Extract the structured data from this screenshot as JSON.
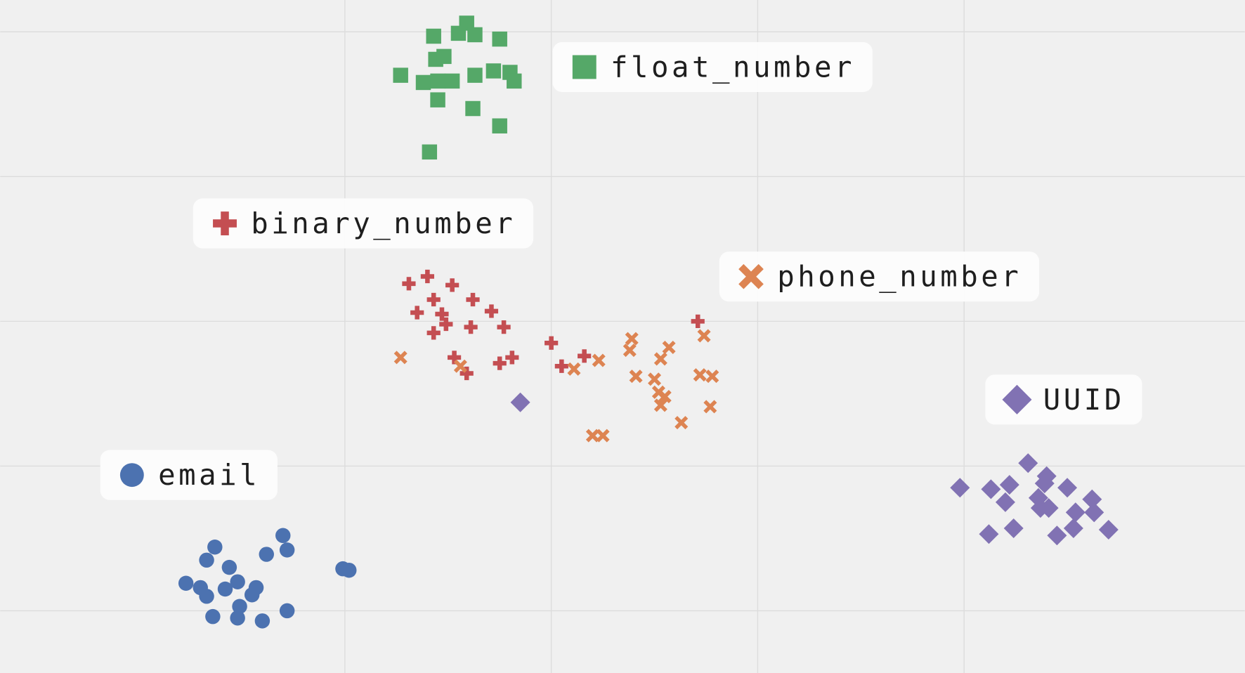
{
  "chart_data": {
    "type": "scatter",
    "grid": true,
    "xlim": [
      -1.67,
      4.36
    ],
    "ylim": [
      -0.43,
      4.22
    ],
    "xticks": [
      0,
      1,
      2,
      3
    ],
    "yticks": [
      0,
      1,
      2,
      3,
      4
    ],
    "series": [
      {
        "name": "float_number",
        "color": "#55a868",
        "marker": "square",
        "x": [
          0.43,
          0.55,
          0.59,
          0.63,
          0.75,
          0.44,
          0.48,
          0.27,
          0.38,
          0.45,
          0.52,
          0.63,
          0.72,
          0.8,
          0.82,
          0.45,
          0.62,
          0.75,
          0.41
        ],
        "values": [
          3.97,
          3.99,
          4.06,
          3.98,
          3.95,
          3.81,
          3.83,
          3.7,
          3.65,
          3.66,
          3.66,
          3.7,
          3.73,
          3.72,
          3.66,
          3.53,
          3.47,
          3.35,
          3.17
        ]
      },
      {
        "name": "binary_number",
        "color": "#c44e52",
        "marker": "plus",
        "x": [
          0.31,
          0.4,
          0.52,
          0.43,
          0.62,
          0.35,
          0.47,
          0.71,
          0.49,
          0.61,
          0.77,
          0.43,
          0.53,
          0.81,
          0.75,
          0.59,
          1.0,
          1.05,
          1.16,
          1.71
        ],
        "values": [
          2.26,
          2.31,
          2.25,
          2.15,
          2.15,
          2.06,
          2.05,
          2.07,
          1.98,
          1.96,
          1.96,
          1.92,
          1.75,
          1.75,
          1.71,
          1.64,
          1.85,
          1.69,
          1.76,
          2.0
        ]
      },
      {
        "name": "phone_number",
        "color": "#dd8452",
        "marker": "x",
        "x": [
          0.27,
          0.56,
          1.11,
          1.23,
          1.39,
          1.38,
          1.57,
          1.53,
          1.74,
          1.41,
          1.5,
          1.72,
          1.78,
          1.52,
          1.55,
          1.53,
          1.77,
          1.63,
          1.2,
          1.25
        ],
        "values": [
          1.75,
          1.69,
          1.67,
          1.73,
          1.88,
          1.8,
          1.82,
          1.74,
          1.9,
          1.62,
          1.6,
          1.63,
          1.62,
          1.51,
          1.48,
          1.42,
          1.41,
          1.3,
          1.21,
          1.21
        ]
      },
      {
        "name": "UUID",
        "color": "#8172b3",
        "marker": "diamond",
        "x": [
          0.85,
          3.31,
          3.4,
          3.39,
          2.98,
          3.13,
          3.22,
          3.5,
          3.36,
          3.62,
          3.2,
          3.37,
          3.41,
          3.54,
          3.63,
          3.24,
          3.53,
          3.7,
          3.12,
          3.45
        ],
        "values": [
          1.44,
          1.02,
          0.93,
          0.88,
          0.85,
          0.84,
          0.87,
          0.85,
          0.78,
          0.77,
          0.75,
          0.71,
          0.71,
          0.68,
          0.68,
          0.57,
          0.57,
          0.56,
          0.53,
          0.52
        ]
      },
      {
        "name": "email",
        "color": "#4c72b0",
        "marker": "circle",
        "x": [
          -0.3,
          -0.63,
          -0.38,
          -0.28,
          -0.67,
          -0.56,
          -0.01,
          0.02,
          -0.77,
          -0.52,
          -0.7,
          -0.58,
          -0.43,
          -0.67,
          -0.45,
          -0.51,
          -0.28,
          -0.64,
          -0.52,
          -0.4
        ],
        "values": [
          0.52,
          0.44,
          0.39,
          0.42,
          0.35,
          0.3,
          0.29,
          0.28,
          0.19,
          0.2,
          0.16,
          0.15,
          0.16,
          0.1,
          0.11,
          0.03,
          0.0,
          -0.04,
          -0.05,
          -0.07
        ]
      }
    ]
  }
}
